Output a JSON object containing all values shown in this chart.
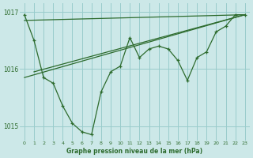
{
  "background_color": "#cce8e8",
  "grid_color": "#99cccc",
  "line_color": "#2d6b2d",
  "title": "Graphe pression niveau de la mer (hPa)",
  "xlim": [
    -0.5,
    23.5
  ],
  "ylim": [
    1014.75,
    1017.15
  ],
  "yticks": [
    1015,
    1016,
    1017
  ],
  "xticks": [
    0,
    1,
    2,
    3,
    4,
    5,
    6,
    7,
    8,
    9,
    10,
    11,
    12,
    13,
    14,
    15,
    16,
    17,
    18,
    19,
    20,
    21,
    22,
    23
  ],
  "main_series": {
    "x": [
      0,
      1,
      2,
      3,
      4,
      5,
      6,
      7,
      8,
      9,
      10,
      11,
      12,
      13,
      14,
      15,
      16,
      17,
      18,
      19,
      20,
      21,
      22,
      23
    ],
    "y": [
      1016.95,
      1016.5,
      1015.85,
      1015.75,
      1015.35,
      1015.05,
      1014.9,
      1014.85,
      1015.6,
      1015.95,
      1016.05,
      1016.55,
      1016.2,
      1016.35,
      1016.4,
      1016.35,
      1016.15,
      1015.8,
      1016.2,
      1016.3,
      1016.65,
      1016.75,
      1016.95,
      1016.95
    ]
  },
  "trend_line1": {
    "x": [
      0,
      23
    ],
    "y": [
      1016.85,
      1016.95
    ]
  },
  "trend_line2": {
    "x": [
      0,
      23
    ],
    "y": [
      1015.85,
      1016.95
    ]
  },
  "trend_line3": {
    "x": [
      1,
      23
    ],
    "y": [
      1015.95,
      1016.95
    ]
  }
}
